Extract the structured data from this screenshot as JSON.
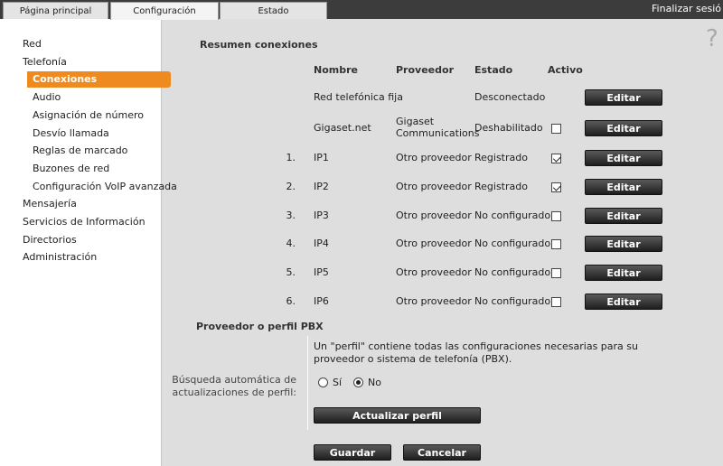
{
  "tabs": [
    "Página principal",
    "Configuración",
    "Estado"
  ],
  "active_tab": 1,
  "logout": "Finalizar sesió",
  "help": "?",
  "menu": [
    {
      "label": "Red",
      "level": 1,
      "active": false
    },
    {
      "label": "Telefonía",
      "level": 1,
      "active": false
    },
    {
      "label": "Conexiones",
      "level": 2,
      "active": true
    },
    {
      "label": "Audio",
      "level": 2,
      "active": false
    },
    {
      "label": "Asignación de número",
      "level": 2,
      "active": false
    },
    {
      "label": "Desvío llamada",
      "level": 2,
      "active": false
    },
    {
      "label": "Reglas de marcado",
      "level": 2,
      "active": false
    },
    {
      "label": "Buzones de red",
      "level": 2,
      "active": false
    },
    {
      "label": "Configuración VoIP avanzada",
      "level": 2,
      "active": false
    },
    {
      "label": "Mensajería",
      "level": 1,
      "active": false
    },
    {
      "label": "Servicios de Información",
      "level": 1,
      "active": false
    },
    {
      "label": "Directorios",
      "level": 1,
      "active": false
    },
    {
      "label": "Administración",
      "level": 1,
      "active": false
    }
  ],
  "section_connections": "Resumen conexiones",
  "columns": [
    "Nombre",
    "Proveedor",
    "Estado",
    "Activo"
  ],
  "rows": [
    {
      "index": null,
      "name": "Red telefónica fija",
      "provider": null,
      "status": "Desconectado",
      "active": null,
      "button": "Editar"
    },
    {
      "index": null,
      "name": "Gigaset.net",
      "provider": "Gigaset Communications",
      "status": "Deshabilitado",
      "active": false,
      "button": "Editar"
    },
    {
      "index": "1.",
      "name": "IP1",
      "provider": "Otro proveedor",
      "status": "Registrado",
      "active": true,
      "button": "Editar"
    },
    {
      "index": "2.",
      "name": "IP2",
      "provider": "Otro proveedor",
      "status": "Registrado",
      "active": true,
      "button": "Editar"
    },
    {
      "index": "3.",
      "name": "IP3",
      "provider": "Otro proveedor",
      "status": "No configurado",
      "active": false,
      "button": "Editar"
    },
    {
      "index": "4.",
      "name": "IP4",
      "provider": "Otro proveedor",
      "status": "No configurado",
      "active": false,
      "button": "Editar"
    },
    {
      "index": "5.",
      "name": "IP5",
      "provider": "Otro proveedor",
      "status": "No configurado",
      "active": false,
      "button": "Editar"
    },
    {
      "index": "6.",
      "name": "IP6",
      "provider": "Otro proveedor",
      "status": "No configurado",
      "active": false,
      "button": "Editar"
    }
  ],
  "section_pbx": "Proveedor o perfil PBX",
  "pbx_text": "Un \"perfil\" contiene todas las configuraciones necesarias para su proveedor o sistema de telefonía (PBX).",
  "auto_label": "Búsqueda automática de actualizaciones de perfil:",
  "radios": [
    {
      "label": "Sí",
      "selected": false
    },
    {
      "label": "No",
      "selected": true
    }
  ],
  "update_button": "Actualizar perfil",
  "buttons": [
    "Guardar",
    "Cancelar"
  ]
}
